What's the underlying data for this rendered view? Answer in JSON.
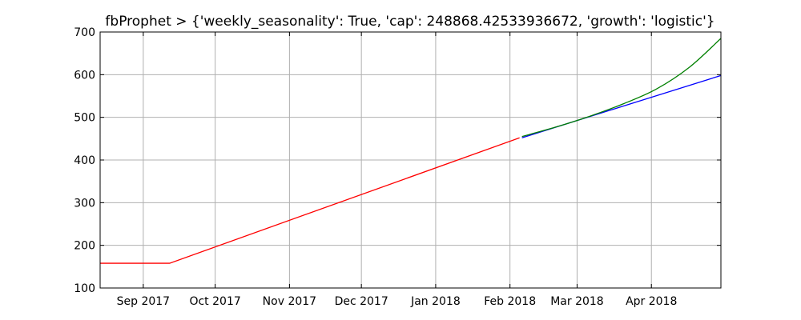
{
  "chart_data": {
    "type": "line",
    "title": "fbProphet > {'weekly_seasonality': True, 'cap': 248868.42533936672, 'growth': 'logistic'}",
    "xlabel": "",
    "ylabel": "",
    "xlim": [
      "2017-08-14",
      "2018-04-30"
    ],
    "ylim": [
      100,
      700
    ],
    "grid": true,
    "x_ticks": [
      {
        "date": "2017-09-01",
        "label": "Sep 2017"
      },
      {
        "date": "2017-10-01",
        "label": "Oct 2017"
      },
      {
        "date": "2017-11-01",
        "label": "Nov 2017"
      },
      {
        "date": "2017-12-01",
        "label": "Dec 2017"
      },
      {
        "date": "2018-01-01",
        "label": "Jan 2018"
      },
      {
        "date": "2018-02-01",
        "label": "Feb 2018"
      },
      {
        "date": "2018-03-01",
        "label": "Mar 2018"
      },
      {
        "date": "2018-04-01",
        "label": "Apr 2018"
      }
    ],
    "y_ticks": [
      100,
      200,
      300,
      400,
      500,
      600,
      700
    ],
    "series": [
      {
        "color": "#ff0000",
        "points": [
          {
            "x": "2017-08-14",
            "y": 158
          },
          {
            "x": "2017-09-12",
            "y": 158
          },
          {
            "x": "2018-02-05",
            "y": 452
          }
        ]
      },
      {
        "color": "#0000ff",
        "points": [
          {
            "x": "2018-02-06",
            "y": 452
          },
          {
            "x": "2018-04-30",
            "y": 598
          }
        ]
      },
      {
        "color": "#008000",
        "points": [
          {
            "x": "2018-02-06",
            "y": 455
          },
          {
            "x": "2018-02-20",
            "y": 477
          },
          {
            "x": "2018-03-06",
            "y": 502
          },
          {
            "x": "2018-03-20",
            "y": 531
          },
          {
            "x": "2018-04-03",
            "y": 566
          },
          {
            "x": "2018-04-17",
            "y": 618
          },
          {
            "x": "2018-04-30",
            "y": 685
          }
        ]
      }
    ]
  }
}
